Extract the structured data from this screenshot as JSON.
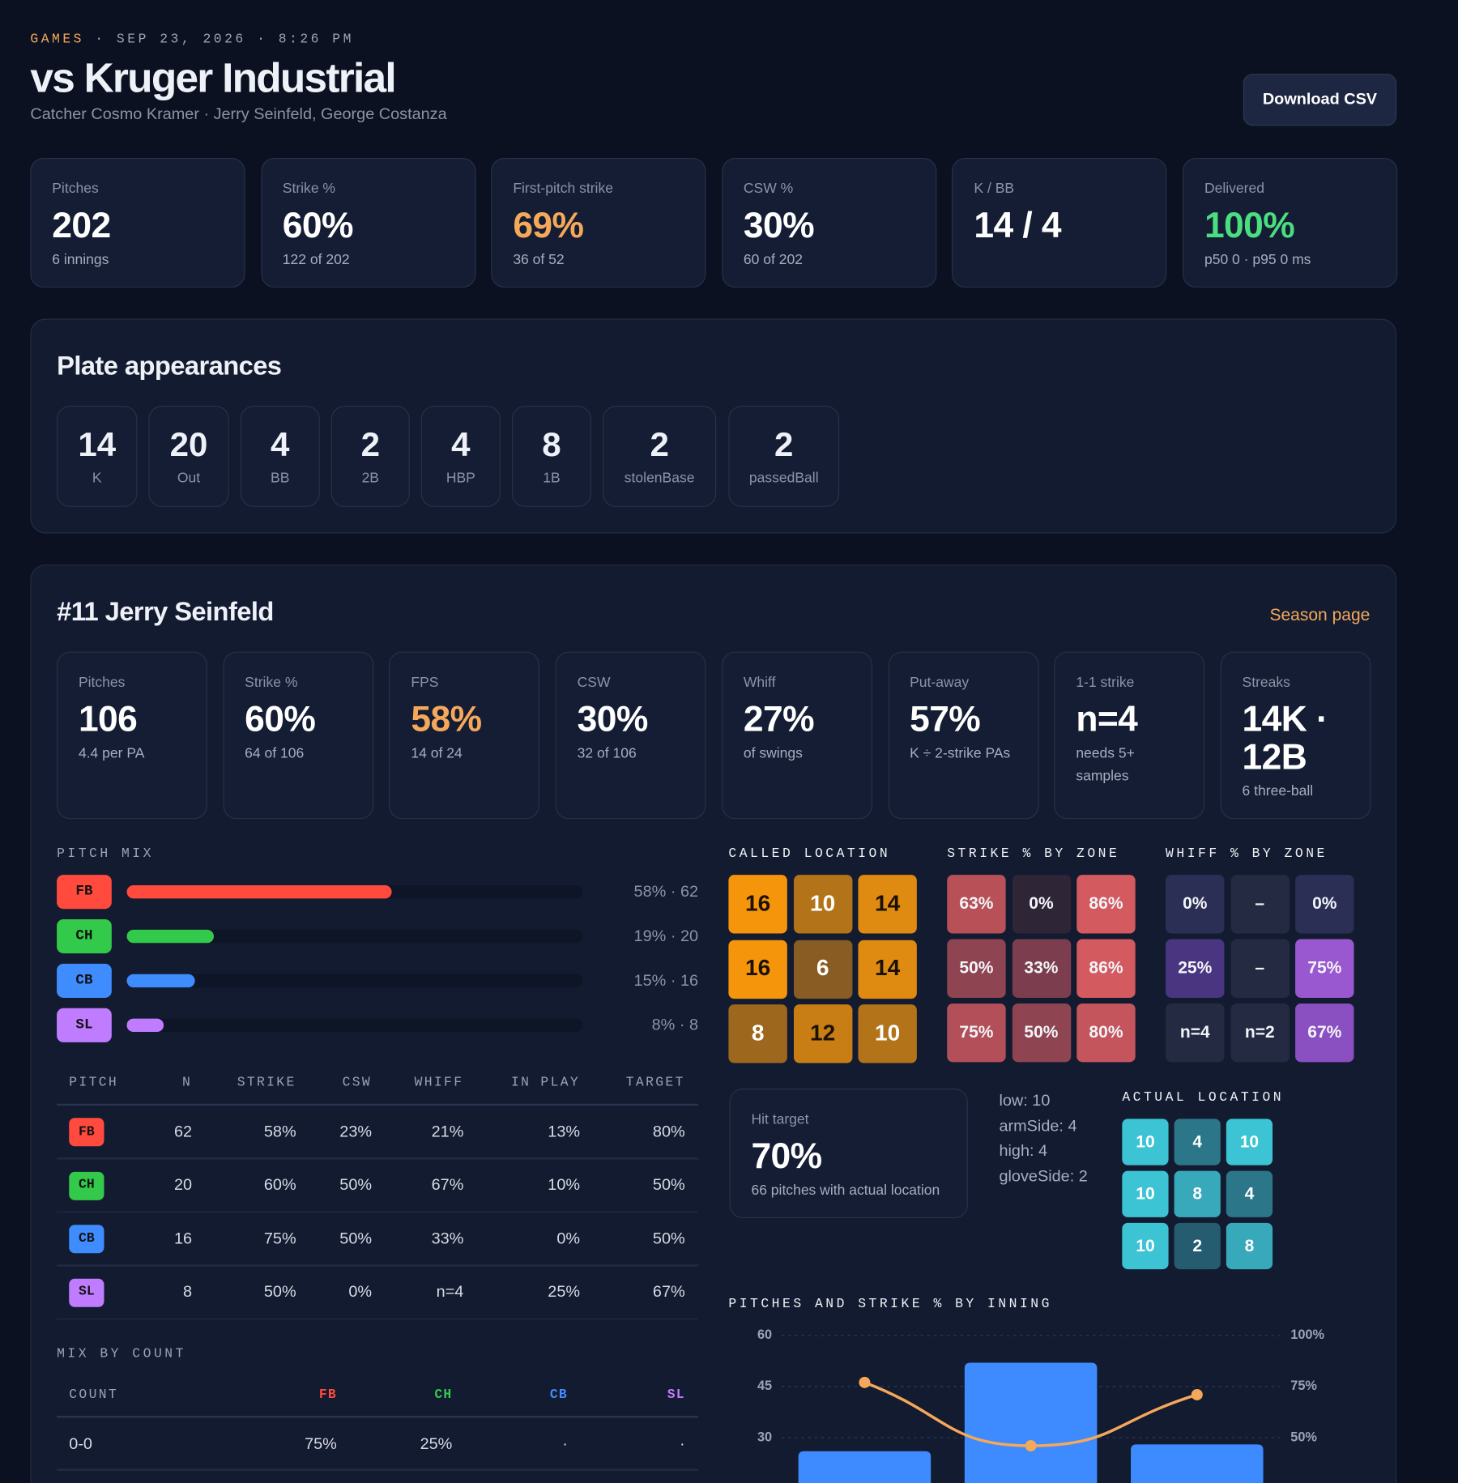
{
  "header": {
    "section": "GAMES",
    "meta": "· SEP 23, 2026 · 8:26 PM",
    "title": "vs Kruger Industrial",
    "subtitle": "Catcher Cosmo Kramer · Jerry Seinfeld, George Costanza",
    "button": "Download CSV"
  },
  "summary": [
    {
      "label": "Pitches",
      "value": "202",
      "note": "6 innings"
    },
    {
      "label": "Strike %",
      "value": "60%",
      "note": "122 of 202"
    },
    {
      "label": "First-pitch strike",
      "value": "69%",
      "note": "36 of 52",
      "color": "#f5a85a"
    },
    {
      "label": "CSW %",
      "value": "30%",
      "note": "60 of 202"
    },
    {
      "label": "K / BB",
      "value": "14 / 4"
    },
    {
      "label": "Delivered",
      "value": "100%",
      "note": "p50 0 · p95 0 ms",
      "color": "#4ade80"
    }
  ],
  "plate_appearances": {
    "title": "Plate appearances",
    "items": [
      {
        "value": 14,
        "label": "K"
      },
      {
        "value": 20,
        "label": "Out"
      },
      {
        "value": 4,
        "label": "BB"
      },
      {
        "value": 2,
        "label": "2B"
      },
      {
        "value": 4,
        "label": "HBP"
      },
      {
        "value": 8,
        "label": "1B"
      },
      {
        "value": 2,
        "label": "stolenBase"
      },
      {
        "value": 2,
        "label": "passedBall"
      }
    ]
  },
  "pitcher": {
    "title": "#11 Jerry Seinfeld",
    "link": "Season page",
    "cards": [
      {
        "label": "Pitches",
        "value": "106",
        "note": "4.4 per PA"
      },
      {
        "label": "Strike %",
        "value": "60%",
        "note": "64 of 106"
      },
      {
        "label": "FPS",
        "value": "58%",
        "note": "14 of 24",
        "color": "#f5a85a"
      },
      {
        "label": "CSW",
        "value": "30%",
        "note": "32 of 106"
      },
      {
        "label": "Whiff",
        "value": "27%",
        "note": "of swings"
      },
      {
        "label": "Put-away",
        "value": "57%",
        "note": "K ÷ 2-strike PAs"
      },
      {
        "label": "1-1 strike",
        "value": "n=4",
        "note": "needs 5+ samples"
      },
      {
        "label": "Streaks",
        "value": "14K · 12B",
        "note": "6 three-ball"
      }
    ]
  },
  "pitch_mix": {
    "title": "PITCH MIX",
    "rows": [
      {
        "code": "FB",
        "color": "#ff4a3d",
        "percent": 58,
        "label": "58% · 62"
      },
      {
        "code": "CH",
        "color": "#33c94a",
        "percent": 19,
        "label": "19% · 20"
      },
      {
        "code": "CB",
        "color": "#3f8cff",
        "percent": 15,
        "label": "15% · 16"
      },
      {
        "code": "SL",
        "color": "#c07cff",
        "percent": 8,
        "label": "8% · 8"
      }
    ]
  },
  "pitch_table": {
    "headers": [
      "PITCH",
      "N",
      "STRIKE",
      "CSW",
      "WHIFF",
      "IN PLAY",
      "TARGET"
    ],
    "rows": [
      [
        "FB",
        "62",
        "58%",
        "23%",
        "21%",
        "13%",
        "80%"
      ],
      [
        "CH",
        "20",
        "60%",
        "50%",
        "67%",
        "10%",
        "50%"
      ],
      [
        "CB",
        "16",
        "75%",
        "50%",
        "33%",
        "0%",
        "50%"
      ],
      [
        "SL",
        "8",
        "50%",
        "0%",
        "n=4",
        "25%",
        "67%"
      ]
    ]
  },
  "mix_by_count": {
    "title": "MIX BY COUNT",
    "headers": [
      "COUNT",
      "FB",
      "CH",
      "CB",
      "SL"
    ],
    "rows": [
      [
        "0-0",
        "75%",
        "25%",
        "·",
        "·"
      ]
    ]
  },
  "called_location": {
    "title": "CALLED LOCATION",
    "color": "#f5950c",
    "values": [
      [
        16,
        10,
        14
      ],
      [
        16,
        6,
        14
      ],
      [
        8,
        12,
        10
      ]
    ]
  },
  "strike_by_zone": {
    "title": "STRIKE % BY ZONE",
    "cells": [
      [
        "63%",
        "0%",
        "86%"
      ],
      [
        "50%",
        "33%",
        "86%"
      ],
      [
        "75%",
        "50%",
        "80%"
      ]
    ],
    "colors": [
      [
        "#b85058",
        "#2e2536",
        "#d35a5f"
      ],
      [
        "#8f4452",
        "#7c3e4e",
        "#d35a5f"
      ],
      [
        "#b34f58",
        "#8f4452",
        "#c4555c"
      ]
    ]
  },
  "whiff_by_zone": {
    "title": "WHIFF % BY ZONE",
    "cells": [
      [
        "0%",
        "–",
        "0%"
      ],
      [
        "25%",
        "–",
        "75%"
      ],
      [
        "n=4",
        "n=2",
        "67%"
      ]
    ],
    "colors": [
      [
        "#2b2f55",
        "#232a42",
        "#2b2f55"
      ],
      [
        "#4a3580",
        "#232a42",
        "#9a58d0"
      ],
      [
        "#232a42",
        "#232a42",
        "#8a4fc0"
      ]
    ]
  },
  "hit_target": {
    "label": "Hit target",
    "value": "70%",
    "note": "66 pitches with actual location"
  },
  "misses": [
    "low: 10",
    "armSide: 4",
    "high: 4",
    "gloveSide: 2"
  ],
  "actual_location": {
    "title": "ACTUAL LOCATION",
    "color": "#3cc3d4",
    "values": [
      [
        10,
        4,
        10
      ],
      [
        10,
        8,
        4
      ],
      [
        10,
        2,
        8
      ]
    ]
  },
  "chart_data": {
    "type": "bar",
    "title": "PITCHES AND STRIKE % BY INNING",
    "categories": [
      null,
      null,
      null
    ],
    "series": [
      {
        "type": "bar",
        "color": "#3d8bff",
        "values": [
          26,
          52,
          28
        ]
      },
      {
        "type": "line",
        "axis": "y2",
        "color": "#f5a85a",
        "values": [
          77,
          46,
          71
        ]
      }
    ],
    "ylim": [
      0,
      60
    ],
    "yticks": [
      30,
      45,
      60
    ],
    "y2lim": [
      0,
      100
    ],
    "y2ticks": [
      {
        "value": 50,
        "label": "50%"
      },
      {
        "value": 75,
        "label": "75%"
      },
      {
        "value": 100,
        "label": "100%"
      }
    ],
    "grid": true
  }
}
